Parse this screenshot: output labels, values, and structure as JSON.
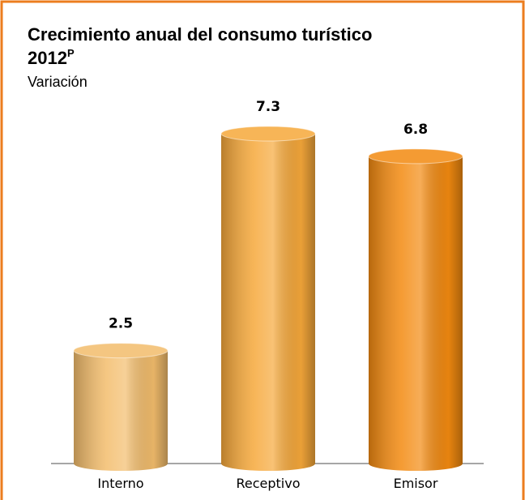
{
  "chart_data": {
    "type": "bar",
    "title": "Crecimiento anual del consumo turístico 2012",
    "title_superscript": "P",
    "subtitle": "Variación",
    "categories": [
      "Interno",
      "Receptivo",
      "Emisor"
    ],
    "values": [
      2.5,
      7.3,
      6.8
    ],
    "colors": [
      "#f3bd6c",
      "#f6a83a",
      "#f38a10"
    ]
  }
}
